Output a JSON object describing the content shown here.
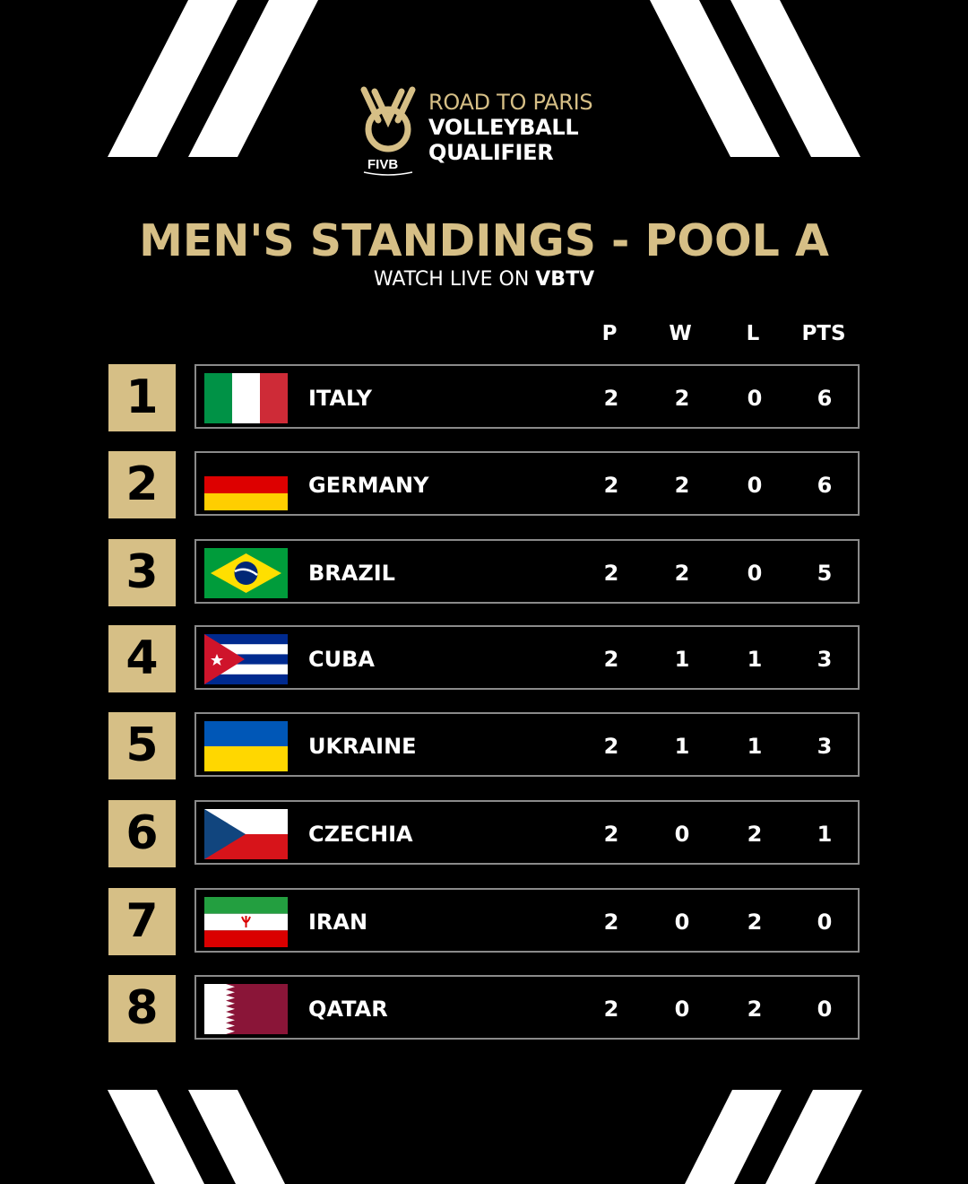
{
  "header": {
    "logo_line1": "ROAD TO PARIS",
    "logo_line2": "VOLLEYBALL",
    "logo_line3": "QUALIFIER",
    "logo_org": "FIVB",
    "title": "MEN'S STANDINGS - POOL A",
    "subtitle_prefix": "WATCH LIVE ON",
    "subtitle_brand": "VBTV"
  },
  "columns": [
    "P",
    "W",
    "L",
    "PTS"
  ],
  "colors": {
    "gold": "#d6bf86",
    "background": "#000000",
    "row_border": "#8a8a8a"
  },
  "rows": [
    {
      "rank": "1",
      "team": "ITALY",
      "flag": "italy-flag",
      "p": "2",
      "w": "2",
      "l": "0",
      "pts": "6"
    },
    {
      "rank": "2",
      "team": "GERMANY",
      "flag": "germany-flag",
      "p": "2",
      "w": "2",
      "l": "0",
      "pts": "6"
    },
    {
      "rank": "3",
      "team": "BRAZIL",
      "flag": "brazil-flag",
      "p": "2",
      "w": "2",
      "l": "0",
      "pts": "5"
    },
    {
      "rank": "4",
      "team": "CUBA",
      "flag": "cuba-flag",
      "p": "2",
      "w": "1",
      "l": "1",
      "pts": "3"
    },
    {
      "rank": "5",
      "team": "UKRAINE",
      "flag": "ukraine-flag",
      "p": "2",
      "w": "1",
      "l": "1",
      "pts": "3"
    },
    {
      "rank": "6",
      "team": "CZECHIA",
      "flag": "czechia-flag",
      "p": "2",
      "w": "0",
      "l": "2",
      "pts": "1"
    },
    {
      "rank": "7",
      "team": "IRAN",
      "flag": "iran-flag",
      "p": "2",
      "w": "0",
      "l": "2",
      "pts": "0"
    },
    {
      "rank": "8",
      "team": "QATAR",
      "flag": "qatar-flag",
      "p": "2",
      "w": "0",
      "l": "2",
      "pts": "0"
    }
  ]
}
